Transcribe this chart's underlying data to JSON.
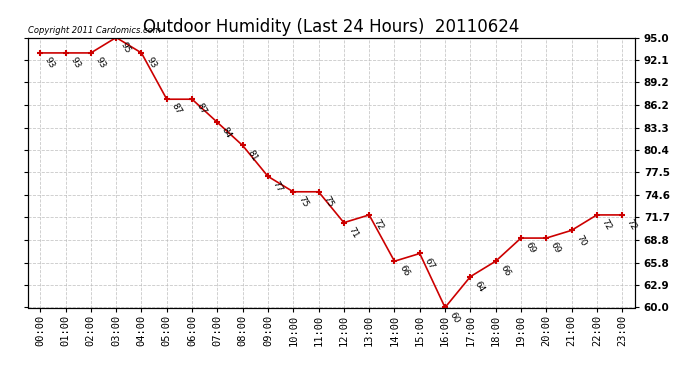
{
  "title": "Outdoor Humidity (Last 24 Hours)  20110624",
  "copyright_text": "Copyright 2011 Cardomics.com",
  "hours": [
    "00:00",
    "01:00",
    "02:00",
    "03:00",
    "04:00",
    "05:00",
    "06:00",
    "07:00",
    "08:00",
    "09:00",
    "10:00",
    "11:00",
    "12:00",
    "13:00",
    "14:00",
    "15:00",
    "16:00",
    "17:00",
    "18:00",
    "19:00",
    "20:00",
    "21:00",
    "22:00",
    "23:00"
  ],
  "values": [
    93,
    93,
    93,
    95,
    93,
    87,
    87,
    84,
    81,
    77,
    75,
    75,
    71,
    72,
    66,
    67,
    60,
    64,
    66,
    69,
    69,
    70,
    72,
    72
  ],
  "ylim": [
    60.0,
    95.0
  ],
  "yticks": [
    60.0,
    62.9,
    65.8,
    68.8,
    71.7,
    74.6,
    77.5,
    80.4,
    83.3,
    86.2,
    89.2,
    92.1,
    95.0
  ],
  "line_color": "#cc0000",
  "marker_color": "#cc0000",
  "bg_color": "#ffffff",
  "grid_color": "#bbbbbb",
  "title_fontsize": 12,
  "tick_fontsize": 7.5,
  "annotation_fontsize": 6.5
}
